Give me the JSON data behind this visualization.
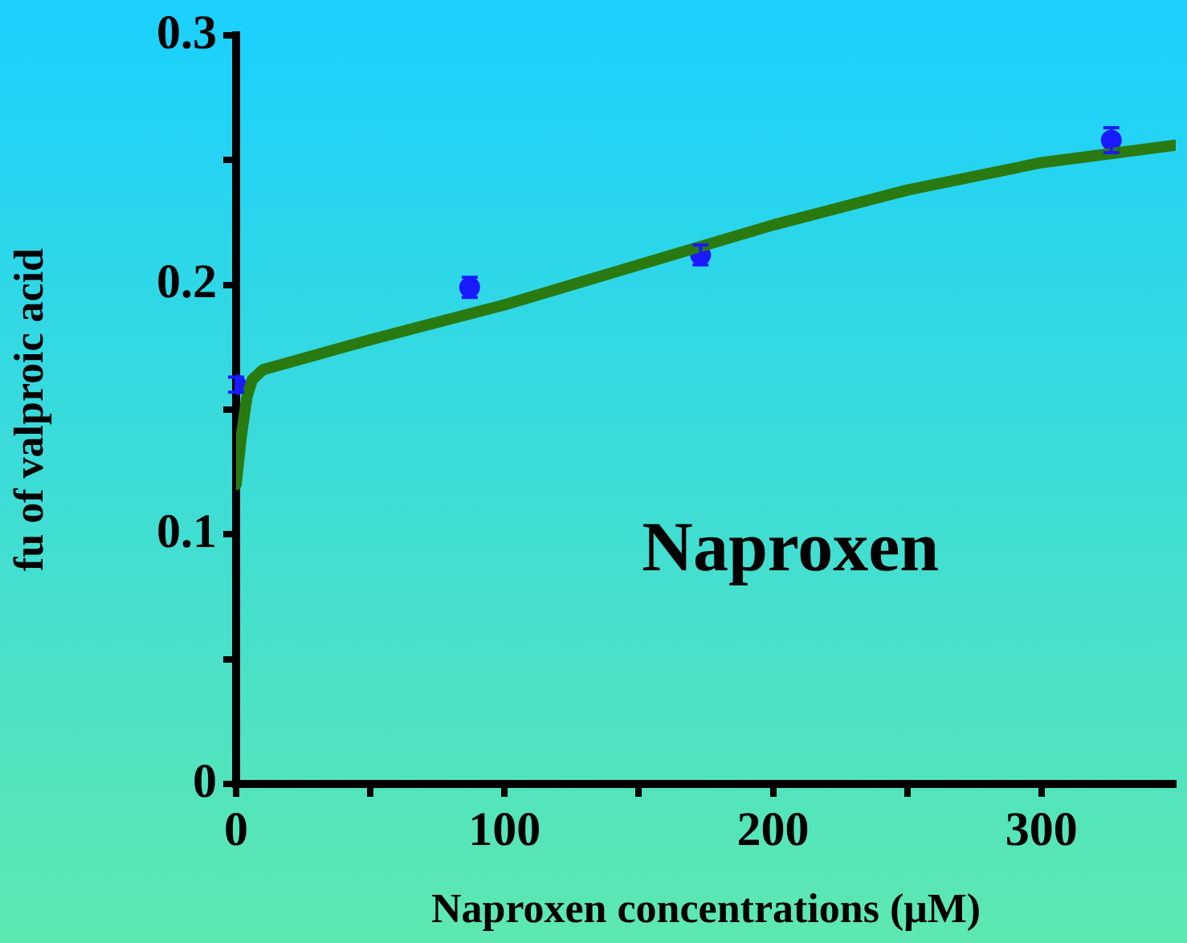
{
  "chart_data": {
    "type": "scatter",
    "xlabel": "Naproxen concentrations (μM)",
    "ylabel": "fu of valproic acid",
    "annotations": [
      "Naproxen"
    ],
    "xlim": [
      0,
      350
    ],
    "xticks": [
      0,
      {
        "value": 50,
        "label": null
      },
      100,
      {
        "value": 150,
        "label": null
      },
      200,
      {
        "value": 250,
        "label": null
      },
      300
    ],
    "ylim": [
      0,
      0.3
    ],
    "yticks": [
      0,
      {
        "value": 0.05,
        "label": null
      },
      0.1,
      {
        "value": 0.15,
        "label": null
      },
      0.2,
      {
        "value": 0.25,
        "label": null
      },
      0.3
    ],
    "grid": false,
    "legend": false,
    "series": [
      {
        "type": "scatter",
        "color": "#1a1aff",
        "marker": "circle",
        "x": [
          0,
          87,
          173,
          326
        ],
        "values": [
          0.16,
          0.199,
          0.212,
          0.258
        ],
        "errors": [
          0.003,
          0.004,
          0.004,
          0.005
        ]
      },
      {
        "type": "line",
        "color": "#2a7a12",
        "marker": "none",
        "line_style": "solid",
        "x": [
          0,
          2,
          4,
          6,
          10,
          50,
          100,
          150,
          200,
          250,
          300,
          350
        ],
        "values": [
          0.12,
          0.14,
          0.155,
          0.162,
          0.166,
          0.178,
          0.192,
          0.208,
          0.224,
          0.238,
          0.249,
          0.256
        ]
      }
    ]
  }
}
